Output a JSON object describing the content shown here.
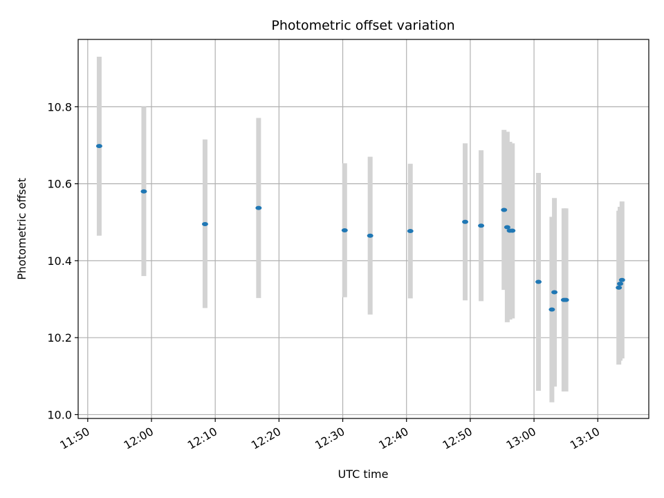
{
  "chart_data": {
    "type": "scatter",
    "title": "Photometric offset variation",
    "xlabel": "UTC time",
    "ylabel": "Photometric offset",
    "x_ticks": [
      "11:50",
      "12:00",
      "12:10",
      "12:20",
      "12:30",
      "12:40",
      "12:50",
      "13:00",
      "13:10"
    ],
    "y_ticks": [
      "10.0",
      "10.2",
      "10.4",
      "10.6",
      "10.8"
    ],
    "xlim": [
      "11:48.5",
      "13:18.0"
    ],
    "ylim": [
      9.99,
      10.975
    ],
    "grid": true,
    "colors": {
      "point": "#1f77b4",
      "errorbar": "#d3d3d3",
      "grid": "#b0b0b0"
    },
    "series": [
      {
        "points": [
          {
            "x": "11:51.8",
            "y": 10.698,
            "low": 10.465,
            "high": 10.93
          },
          {
            "x": "11:58.8",
            "y": 10.58,
            "low": 10.36,
            "high": 10.8
          },
          {
            "x": "12:08.4",
            "y": 10.495,
            "low": 10.277,
            "high": 10.715
          },
          {
            "x": "12:16.8",
            "y": 10.537,
            "low": 10.303,
            "high": 10.771
          },
          {
            "x": "12:30.3",
            "y": 10.479,
            "low": 10.305,
            "high": 10.653
          },
          {
            "x": "12:34.3",
            "y": 10.465,
            "low": 10.26,
            "high": 10.67
          },
          {
            "x": "12:40.6",
            "y": 10.477,
            "low": 10.302,
            "high": 10.652
          },
          {
            "x": "12:49.2",
            "y": 10.501,
            "low": 10.297,
            "high": 10.705
          },
          {
            "x": "12:51.7",
            "y": 10.491,
            "low": 10.295,
            "high": 10.687
          },
          {
            "x": "12:55.3",
            "y": 10.532,
            "low": 10.324,
            "high": 10.74
          },
          {
            "x": "12:55.8",
            "y": 10.487,
            "low": 10.24,
            "high": 10.735
          },
          {
            "x": "12:56.2",
            "y": 10.478,
            "low": 10.247,
            "high": 10.709
          },
          {
            "x": "12:56.6",
            "y": 10.478,
            "low": 10.25,
            "high": 10.705
          },
          {
            "x": "13:00.7",
            "y": 10.345,
            "low": 10.062,
            "high": 10.628
          },
          {
            "x": "13:02.8",
            "y": 10.273,
            "low": 10.032,
            "high": 10.514
          },
          {
            "x": "13:03.2",
            "y": 10.318,
            "low": 10.073,
            "high": 10.563
          },
          {
            "x": "13:04.7",
            "y": 10.298,
            "low": 10.06,
            "high": 10.536
          },
          {
            "x": "13:05.0",
            "y": 10.298,
            "low": 10.06,
            "high": 10.536
          },
          {
            "x": "13:13.3",
            "y": 10.33,
            "low": 10.13,
            "high": 10.53
          },
          {
            "x": "13:13.5",
            "y": 10.34,
            "low": 10.14,
            "high": 10.54
          },
          {
            "x": "13:13.8",
            "y": 10.35,
            "low": 10.146,
            "high": 10.554
          }
        ]
      }
    ]
  }
}
